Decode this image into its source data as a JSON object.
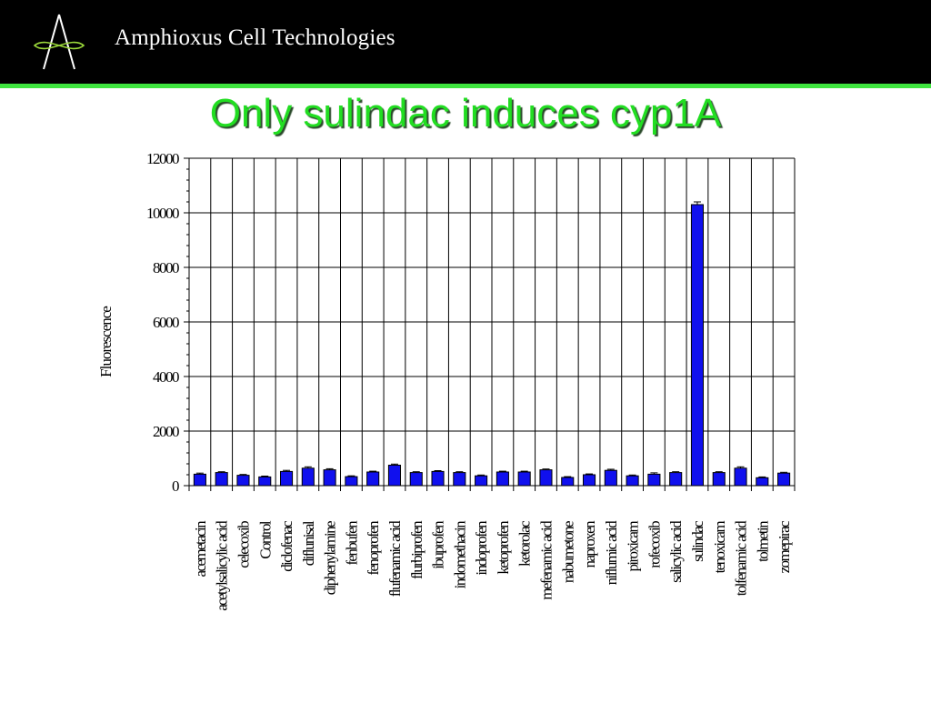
{
  "header": {
    "company_name": "Amphioxus Cell Technologies",
    "logo_icon": "amphioxus-logo-icon",
    "background_color": "#000000",
    "rule_color": "#3fe63f"
  },
  "slide": {
    "title": "Only sulindac induces cyp1A",
    "title_color": "#22dd22"
  },
  "chart_data": {
    "type": "bar",
    "ylabel": "Fluorescence",
    "xlabel": "",
    "ylim": [
      0,
      12000
    ],
    "yticks": [
      0,
      2000,
      4000,
      6000,
      8000,
      10000,
      12000
    ],
    "ytick_labels": [
      "0",
      "2000",
      "4000",
      "6000",
      "8000",
      "10000",
      "12000"
    ],
    "grid": "vertical",
    "bar_color": "#1010ee",
    "categories": [
      "acemetacin",
      "acetylsalicylic acid",
      "celecoxib",
      "Control",
      "diclofenac",
      "diflunisal",
      "diphenylamine",
      "fenbufen",
      "fenoprofen",
      "flufenamic acid",
      "flurbiprofen",
      "ibuprofen",
      "indomethacin",
      "indoprofen",
      "ketoprofen",
      "ketorolac",
      "mefenamic acid",
      "nabumetone",
      "naproxen",
      "niflumic acid",
      "piroxicam",
      "rofecoxib",
      "salicylic acid",
      "sulindac",
      "tenoxicam",
      "tolfenamic acid",
      "tolmetin",
      "zomepirac"
    ],
    "values": [
      420,
      480,
      380,
      320,
      520,
      640,
      580,
      330,
      500,
      750,
      480,
      520,
      480,
      360,
      500,
      500,
      580,
      300,
      400,
      560,
      360,
      420,
      480,
      10300,
      480,
      640,
      290,
      460
    ],
    "errors": [
      40,
      30,
      30,
      30,
      40,
      50,
      40,
      30,
      30,
      40,
      30,
      30,
      30,
      30,
      30,
      30,
      30,
      30,
      30,
      40,
      30,
      50,
      30,
      100,
      30,
      50,
      30,
      30
    ]
  }
}
